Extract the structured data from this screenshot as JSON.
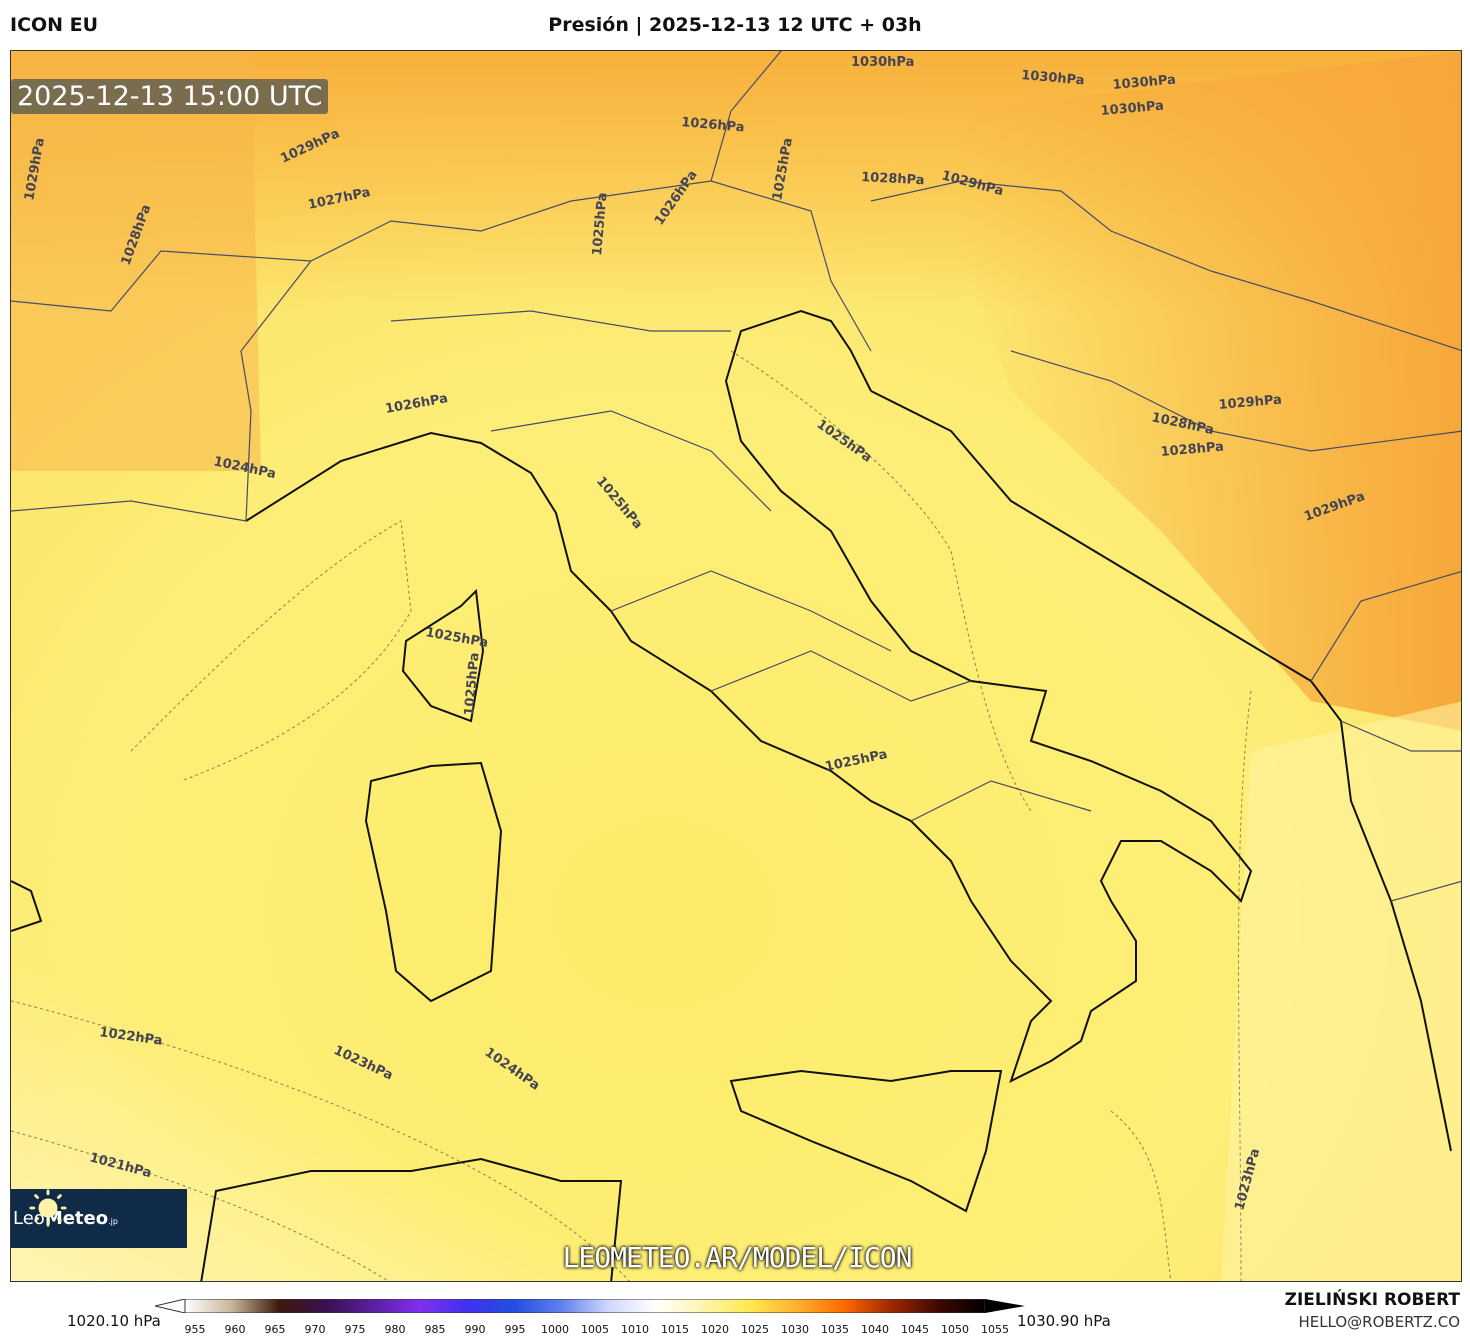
{
  "header": {
    "model": "ICON EU",
    "title": "Presión | 2025-12-13 12 UTC + 03h"
  },
  "map": {
    "valid_time": "2025-12-13 15:00 UTC",
    "url_watermark": "LEOMETEO.AR/MODEL/ICON",
    "logo": {
      "text_light": "Leo",
      "text_bold": "Meteo",
      "suffix": ".jp"
    },
    "contour_labels": [
      "1030hPa",
      "1030hPa",
      "1030hPa",
      "1030hPa",
      "1029hPa",
      "1026hPa",
      "1025hPa",
      "1028hPa",
      "1029hPa",
      "1027hPa",
      "1026hPa",
      "1025hPa",
      "1028hPa",
      "1026hPa",
      "1024hPa",
      "1025hPa",
      "1025hPa",
      "1029hPa",
      "1028hPa",
      "1028hPa",
      "1029hPa",
      "1025hPa",
      "1025hPa",
      "1025hPa",
      "1022hPa",
      "1023hPa",
      "1024hPa",
      "1021hPa",
      "1023hPa",
      "1029hPa"
    ]
  },
  "colorbar": {
    "min_label": "1020.10 hPa",
    "max_label": "1030.90 hPa",
    "ticks": [
      "955",
      "960",
      "965",
      "970",
      "975",
      "980",
      "985",
      "990",
      "995",
      "1000",
      "1005",
      "1010",
      "1015",
      "1020",
      "1025",
      "1030",
      "1035",
      "1040",
      "1045",
      "1050",
      "1055"
    ],
    "colors": [
      "#ffffff",
      "#c8b49a",
      "#3d1a0a",
      "#3a1050",
      "#5a20a0",
      "#8030f0",
      "#4030f0",
      "#2050e0",
      "#6080f0",
      "#d0d8ff",
      "#ffffff",
      "#fff6b0",
      "#ffe94d",
      "#ffb030",
      "#ff6a00",
      "#a02800",
      "#400800",
      "#000000"
    ]
  },
  "footer": {
    "author": "ZIELIŃSKI ROBERT",
    "email": "HELLO@ROBERTZ.CO"
  }
}
